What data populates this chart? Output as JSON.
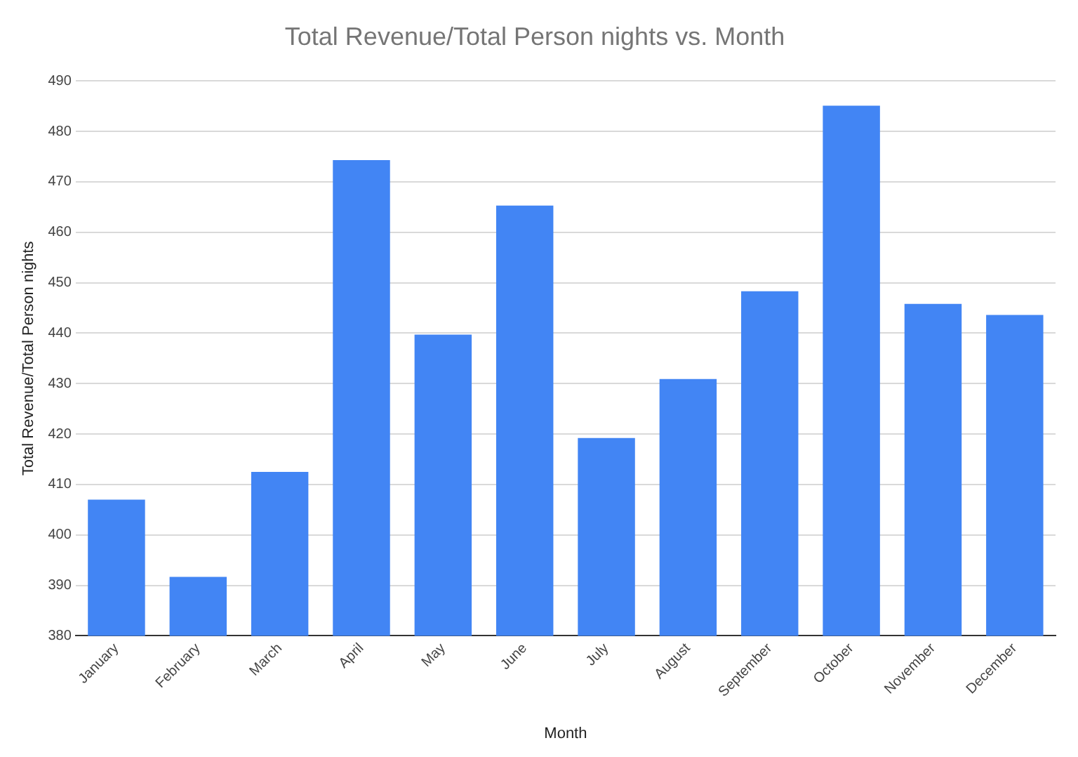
{
  "chart_data": {
    "type": "bar",
    "title": "Total Revenue/Total Person nights vs. Month",
    "xlabel": "Month",
    "ylabel": "Total Revenue/Total Person nights",
    "categories": [
      "January",
      "February",
      "March",
      "April",
      "May",
      "June",
      "July",
      "August",
      "September",
      "October",
      "November",
      "December"
    ],
    "values": [
      407,
      391.7,
      412.5,
      474.3,
      439.7,
      465.3,
      419.2,
      430.9,
      448.3,
      485.1,
      445.8,
      443.6
    ],
    "color": "#4285f4",
    "ylim": [
      380,
      490
    ],
    "yticks": [
      380,
      390,
      400,
      410,
      420,
      430,
      440,
      450,
      460,
      470,
      480,
      490
    ],
    "grid": "y",
    "legend": false
  }
}
